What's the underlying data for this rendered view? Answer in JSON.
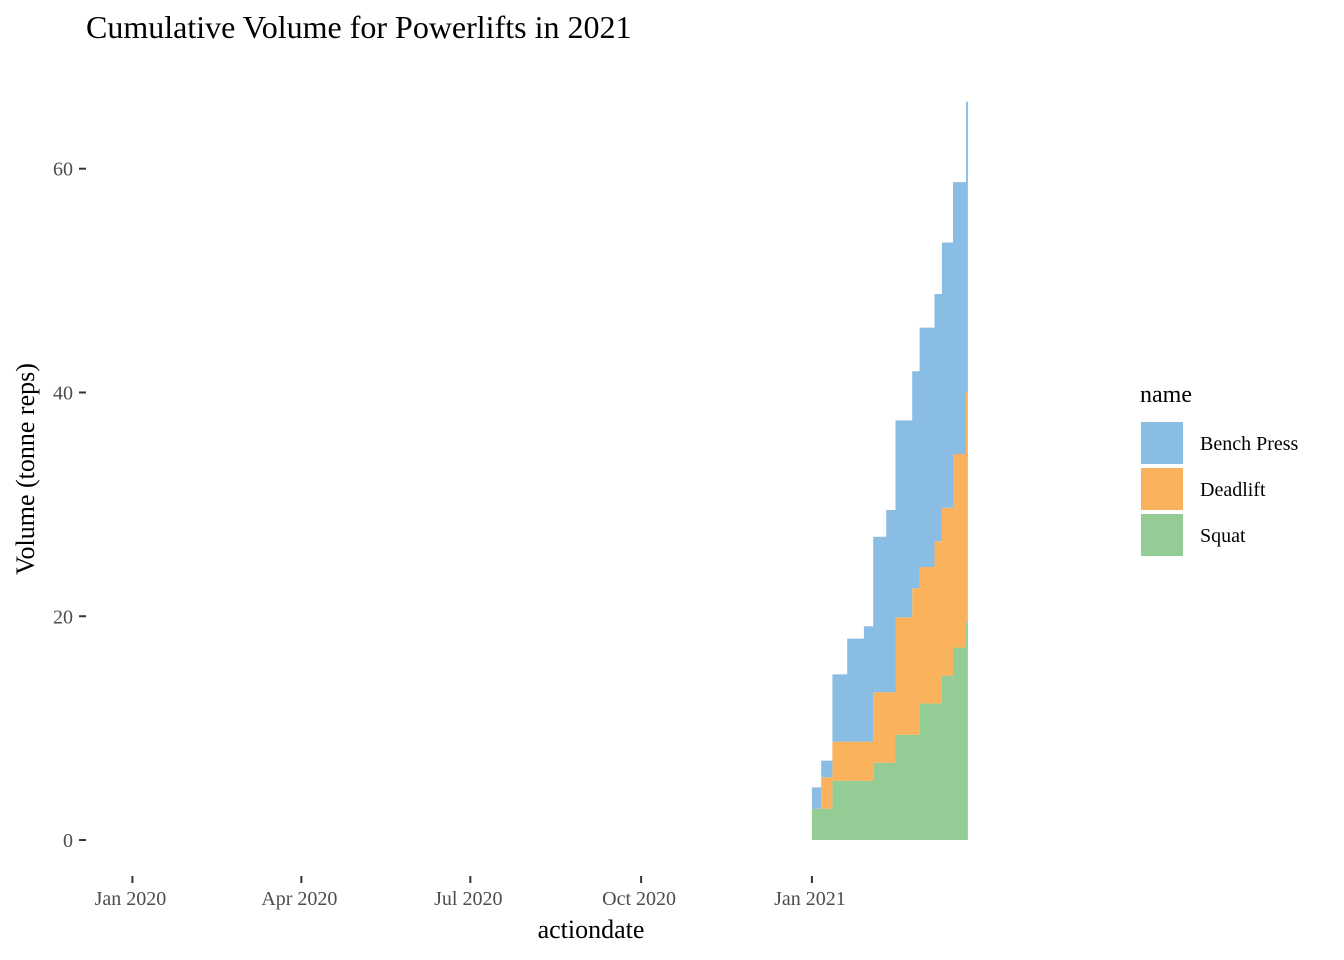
{
  "chart_data": {
    "type": "area",
    "stacked": true,
    "title": "Cumulative Volume for Powerlifts in 2021",
    "xlabel": "actiondate",
    "ylabel": "Volume (tonne reps)",
    "x_ticks": [
      "Jan 2020",
      "Apr 2020",
      "Jul 2020",
      "Oct 2020",
      "Jan 2021"
    ],
    "x_tick_dates": [
      "2020-01-01",
      "2020-04-01",
      "2020-07-01",
      "2020-10-01",
      "2021-01-01"
    ],
    "xlim": [
      "2019-12-07",
      "2021-06-03"
    ],
    "y_ticks": [
      0,
      20,
      40,
      60
    ],
    "ylim": [
      -2.5,
      69
    ],
    "grid": false,
    "legend": {
      "title": "name",
      "position": "right",
      "entries": [
        "Bench Press",
        "Deadlift",
        "Squat"
      ]
    },
    "colors": {
      "Bench Press": "#8abde3",
      "Deadlift": "#fbb25c",
      "Squat": "#94cc96"
    },
    "series": [
      {
        "name": "Squat",
        "points": [
          [
            "2021-01-01",
            2.8
          ],
          [
            "2021-01-08",
            2.8
          ],
          [
            "2021-01-12",
            5.3
          ],
          [
            "2021-01-20",
            5.3
          ],
          [
            "2021-01-29",
            5.3
          ],
          [
            "2021-02-03",
            6.9
          ],
          [
            "2021-02-10",
            6.9
          ],
          [
            "2021-02-15",
            9.4
          ],
          [
            "2021-02-24",
            9.4
          ],
          [
            "2021-02-28",
            12.2
          ],
          [
            "2021-03-08",
            12.2
          ],
          [
            "2021-03-12",
            14.7
          ],
          [
            "2021-03-18",
            17.2
          ],
          [
            "2021-03-25",
            19.5
          ],
          [
            "2021-03-26",
            19.5
          ]
        ]
      },
      {
        "name": "Deadlift",
        "points": [
          [
            "2021-01-01",
            0
          ],
          [
            "2021-01-06",
            2.8
          ],
          [
            "2021-01-12",
            3.5
          ],
          [
            "2021-01-20",
            3.5
          ],
          [
            "2021-01-29",
            3.5
          ],
          [
            "2021-02-03",
            6.3
          ],
          [
            "2021-02-10",
            6.3
          ],
          [
            "2021-02-15",
            10.5
          ],
          [
            "2021-02-24",
            13.1
          ],
          [
            "2021-02-28",
            12.2
          ],
          [
            "2021-03-08",
            14.5
          ],
          [
            "2021-03-12",
            15.0
          ],
          [
            "2021-03-18",
            17.3
          ],
          [
            "2021-03-25",
            20.5
          ],
          [
            "2021-03-26",
            20.5
          ]
        ]
      },
      {
        "name": "Bench Press",
        "points": [
          [
            "2021-01-01",
            1.9
          ],
          [
            "2021-01-06",
            1.5
          ],
          [
            "2021-01-12",
            6.0
          ],
          [
            "2021-01-20",
            9.2
          ],
          [
            "2021-01-29",
            10.3
          ],
          [
            "2021-02-03",
            13.9
          ],
          [
            "2021-02-10",
            16.3
          ],
          [
            "2021-02-15",
            17.6
          ],
          [
            "2021-02-24",
            19.4
          ],
          [
            "2021-02-28",
            21.4
          ],
          [
            "2021-03-08",
            22.1
          ],
          [
            "2021-03-12",
            23.7
          ],
          [
            "2021-03-18",
            24.3
          ],
          [
            "2021-03-25",
            26.0
          ],
          [
            "2021-03-26",
            26.0
          ]
        ]
      }
    ]
  }
}
